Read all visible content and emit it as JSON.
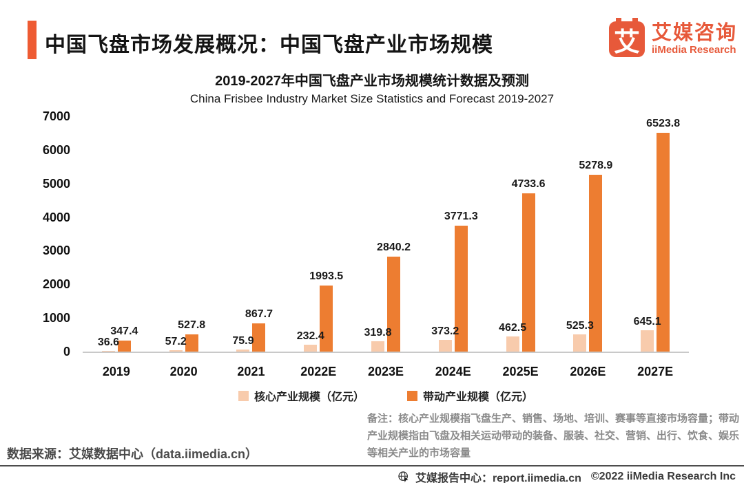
{
  "header": {
    "title": "中国飞盘市场发展概况：中国飞盘产业市场规模",
    "logo": {
      "glyph": "艾",
      "name_cn": "艾媒咨询",
      "name_en": "iiMedia Research",
      "color": "#E7593A"
    }
  },
  "chart_data": {
    "type": "bar",
    "title": "2019-2027年中国飞盘产业市场规模统计数据及预测",
    "subtitle": "China Frisbee Industry Market Size Statistics and Forecast 2019-2027",
    "categories": [
      "2019",
      "2020",
      "2021",
      "2022E",
      "2023E",
      "2024E",
      "2025E",
      "2026E",
      "2027E"
    ],
    "series": [
      {
        "name": "核心产业规模（亿元）",
        "color": "#F8CBAC",
        "values": [
          36.6,
          57.2,
          75.9,
          232.4,
          319.8,
          373.2,
          462.5,
          525.3,
          645.1
        ]
      },
      {
        "name": "带动产业规模（亿元）",
        "color": "#ED7D31",
        "values": [
          347.4,
          527.8,
          867.7,
          1993.5,
          2840.2,
          3771.3,
          4733.6,
          5278.9,
          6523.8
        ]
      }
    ],
    "ylim": [
      0,
      7000
    ],
    "yticks": [
      0,
      1000,
      2000,
      3000,
      4000,
      5000,
      6000,
      7000
    ],
    "grid": false,
    "legend_position": "bottom"
  },
  "note": "备注：核心产业规模指飞盘生产、销售、场地、培训、赛事等直接市场容量；带动产业规模指由飞盘及相关运动带动的装备、服装、社交、营销、出行、饮食、娱乐等相关产业的市场容量",
  "source": "数据来源：艾媒数据中心（data.iimedia.cn）",
  "footer": {
    "center": "艾媒报告中心：report.iimedia.cn",
    "copyright": "©2022 iiMedia Research Inc"
  }
}
